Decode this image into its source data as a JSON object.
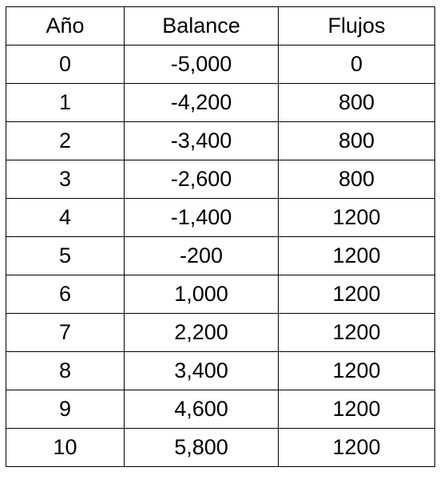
{
  "table": {
    "headers": [
      "Año",
      "Balance",
      "Flujos"
    ],
    "rows": [
      [
        "0",
        "-5,000",
        "0"
      ],
      [
        "1",
        "-4,200",
        "800"
      ],
      [
        "2",
        "-3,400",
        "800"
      ],
      [
        "3",
        "-2,600",
        "800"
      ],
      [
        "4",
        "-1,400",
        "1200"
      ],
      [
        "5",
        "-200",
        "1200"
      ],
      [
        "6",
        "1,000",
        "1200"
      ],
      [
        "7",
        "2,200",
        "1200"
      ],
      [
        "8",
        "3,400",
        "1200"
      ],
      [
        "9",
        "4,600",
        "1200"
      ],
      [
        "10",
        "5,800",
        "1200"
      ]
    ]
  }
}
